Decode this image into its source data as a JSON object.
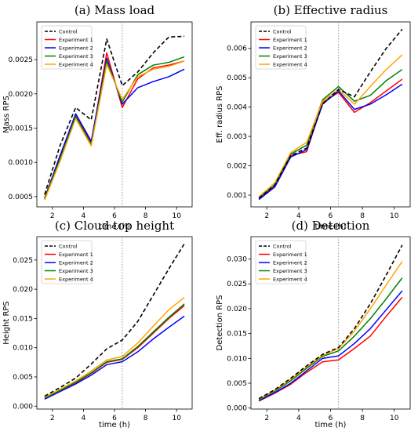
{
  "chart_data": [
    {
      "type": "line",
      "title": "(a) Mass load",
      "xlabel": "time (h)",
      "ylabel": "Mass RPS",
      "xlim": [
        1.0,
        11.0
      ],
      "ylim": [
        0.00035,
        0.00305
      ],
      "xticks": [
        2,
        4,
        6,
        8,
        10
      ],
      "yticks": [
        0.0005,
        0.001,
        0.0015,
        0.002,
        0.0025
      ],
      "ytick_labels": [
        "0.0005",
        "0.0010",
        "0.0015",
        "0.0020",
        "0.0025"
      ],
      "vline": 6.5,
      "legend": "top-left",
      "x": [
        1.5,
        2.5,
        3.5,
        4.5,
        5.5,
        6.5,
        7.5,
        8.5,
        9.5,
        10.5
      ],
      "series": [
        {
          "name": "Control",
          "color": "#000000",
          "dashed": true,
          "values": [
            0.00053,
            0.00125,
            0.0018,
            0.00162,
            0.0028,
            0.00212,
            0.00232,
            0.0026,
            0.00283,
            0.00284
          ]
        },
        {
          "name": "Experiment 1",
          "color": "#ff0000",
          "dashed": false,
          "values": [
            0.00048,
            0.0011,
            0.0017,
            0.00128,
            0.0026,
            0.0018,
            0.00222,
            0.00238,
            0.00242,
            0.00248
          ]
        },
        {
          "name": "Experiment 2",
          "color": "#0000ff",
          "dashed": false,
          "values": [
            0.00047,
            0.0011,
            0.00171,
            0.00131,
            0.00252,
            0.00185,
            0.00209,
            0.00218,
            0.00225,
            0.00236
          ]
        },
        {
          "name": "Experiment 3",
          "color": "#008000",
          "dashed": false,
          "values": [
            0.00047,
            0.00105,
            0.00167,
            0.00126,
            0.00248,
            0.00188,
            0.00228,
            0.00242,
            0.00246,
            0.00254
          ]
        },
        {
          "name": "Experiment 4",
          "color": "#ffa500",
          "dashed": false,
          "values": [
            0.00045,
            0.00102,
            0.00164,
            0.00124,
            0.00243,
            0.00192,
            0.00225,
            0.00236,
            0.0024,
            0.00248
          ]
        }
      ]
    },
    {
      "type": "line",
      "title": "(b) Effective radius",
      "xlabel": "time (h)",
      "ylabel": "Eff. radius RPS",
      "xlim": [
        1.0,
        11.0
      ],
      "ylim": [
        0.0006,
        0.0069
      ],
      "xticks": [
        2,
        4,
        6,
        8,
        10
      ],
      "yticks": [
        0.001,
        0.002,
        0.003,
        0.004,
        0.005,
        0.006
      ],
      "ytick_labels": [
        "0.001",
        "0.002",
        "0.003",
        "0.004",
        "0.005",
        "0.006"
      ],
      "vline": 6.5,
      "legend": "top-left",
      "x": [
        1.5,
        2.5,
        3.5,
        4.5,
        5.5,
        6.5,
        7.5,
        8.5,
        9.5,
        10.5
      ],
      "series": [
        {
          "name": "Control",
          "color": "#000000",
          "dashed": true,
          "values": [
            0.0009,
            0.00135,
            0.00235,
            0.0026,
            0.0041,
            0.0046,
            0.00435,
            0.0052,
            0.006,
            0.00665
          ]
        },
        {
          "name": "Experiment 1",
          "color": "#ff0000",
          "dashed": false,
          "values": [
            0.00088,
            0.0013,
            0.00235,
            0.00248,
            0.00415,
            0.0045,
            0.00382,
            0.00415,
            0.00455,
            0.00495
          ]
        },
        {
          "name": "Experiment 2",
          "color": "#0000ff",
          "dashed": false,
          "values": [
            0.00085,
            0.00128,
            0.0023,
            0.00255,
            0.0041,
            0.00455,
            0.00392,
            0.0041,
            0.00442,
            0.00478
          ]
        },
        {
          "name": "Experiment 3",
          "color": "#008000",
          "dashed": false,
          "values": [
            0.0009,
            0.00135,
            0.0024,
            0.0027,
            0.00425,
            0.0047,
            0.0042,
            0.0044,
            0.0049,
            0.00528
          ]
        },
        {
          "name": "Experiment 4",
          "color": "#ffa500",
          "dashed": false,
          "values": [
            0.00095,
            0.00142,
            0.00245,
            0.0028,
            0.0042,
            0.0046,
            0.0041,
            0.0047,
            0.00528,
            0.00578
          ]
        }
      ]
    },
    {
      "type": "line",
      "title": "(c) Cloud top height",
      "xlabel": "time (h)",
      "ylabel": "Height RPS",
      "xlim": [
        1.0,
        11.0
      ],
      "ylim": [
        -0.0005,
        0.029
      ],
      "xticks": [
        2,
        4,
        6,
        8,
        10
      ],
      "yticks": [
        0.0,
        0.005,
        0.01,
        0.015,
        0.02,
        0.025
      ],
      "ytick_labels": [
        "0.000",
        "0.005",
        "0.010",
        "0.015",
        "0.020",
        "0.025"
      ],
      "vline": 6.5,
      "legend": "top-left",
      "x": [
        1.5,
        2.5,
        3.5,
        4.5,
        5.5,
        6.5,
        7.5,
        8.5,
        9.5,
        10.5
      ],
      "series": [
        {
          "name": "Control",
          "color": "#000000",
          "dashed": true,
          "values": [
            0.0017,
            0.0032,
            0.0048,
            0.0072,
            0.0098,
            0.0113,
            0.0145,
            0.019,
            0.0235,
            0.0278
          ]
        },
        {
          "name": "Experiment 1",
          "color": "#ff0000",
          "dashed": false,
          "values": [
            0.0013,
            0.0026,
            0.004,
            0.0056,
            0.0075,
            0.008,
            0.01,
            0.0125,
            0.015,
            0.0172
          ]
        },
        {
          "name": "Experiment 2",
          "color": "#0000ff",
          "dashed": false,
          "values": [
            0.0012,
            0.0025,
            0.0038,
            0.0053,
            0.0071,
            0.0076,
            0.0093,
            0.0115,
            0.0135,
            0.0154
          ]
        },
        {
          "name": "Experiment 3",
          "color": "#008000",
          "dashed": false,
          "values": [
            0.0014,
            0.0027,
            0.0041,
            0.0057,
            0.0076,
            0.0081,
            0.0102,
            0.0127,
            0.0152,
            0.0175
          ]
        },
        {
          "name": "Experiment 4",
          "color": "#ffa500",
          "dashed": false,
          "values": [
            0.0015,
            0.0029,
            0.0043,
            0.006,
            0.0079,
            0.0085,
            0.0108,
            0.0137,
            0.0165,
            0.0186
          ]
        }
      ]
    },
    {
      "type": "line",
      "title": "(d) Detection",
      "xlabel": "time (h)",
      "ylabel": "Detection RPS",
      "xlim": [
        1.0,
        11.0
      ],
      "ylim": [
        -0.0002,
        0.0345
      ],
      "xticks": [
        2,
        4,
        6,
        8,
        10
      ],
      "yticks": [
        0.0,
        0.005,
        0.01,
        0.015,
        0.02,
        0.025,
        0.03
      ],
      "ytick_labels": [
        "0.000",
        "0.005",
        "0.010",
        "0.015",
        "0.020",
        "0.025",
        "0.030"
      ],
      "vline": 6.5,
      "legend": "top-left",
      "x": [
        1.5,
        2.5,
        3.5,
        4.5,
        5.5,
        6.5,
        7.5,
        8.5,
        9.5,
        10.5
      ],
      "series": [
        {
          "name": "Control",
          "color": "#000000",
          "dashed": true,
          "values": [
            0.0019,
            0.0037,
            0.006,
            0.0085,
            0.0108,
            0.0122,
            0.016,
            0.021,
            0.0268,
            0.0328
          ]
        },
        {
          "name": "Experiment 1",
          "color": "#ff0000",
          "dashed": false,
          "values": [
            0.0014,
            0.003,
            0.0048,
            0.0072,
            0.0093,
            0.0097,
            0.012,
            0.0145,
            0.0185,
            0.0223
          ]
        },
        {
          "name": "Experiment 2",
          "color": "#0000ff",
          "dashed": false,
          "values": [
            0.0015,
            0.0031,
            0.005,
            0.0075,
            0.01,
            0.0105,
            0.013,
            0.016,
            0.0198,
            0.0236
          ]
        },
        {
          "name": "Experiment 3",
          "color": "#008000",
          "dashed": false,
          "values": [
            0.0017,
            0.0034,
            0.0055,
            0.008,
            0.0104,
            0.0115,
            0.0145,
            0.018,
            0.022,
            0.0262
          ]
        },
        {
          "name": "Experiment 4",
          "color": "#ffa500",
          "dashed": false,
          "values": [
            0.0018,
            0.0036,
            0.0058,
            0.0083,
            0.0106,
            0.012,
            0.0155,
            0.02,
            0.0248,
            0.0295
          ]
        }
      ]
    }
  ]
}
